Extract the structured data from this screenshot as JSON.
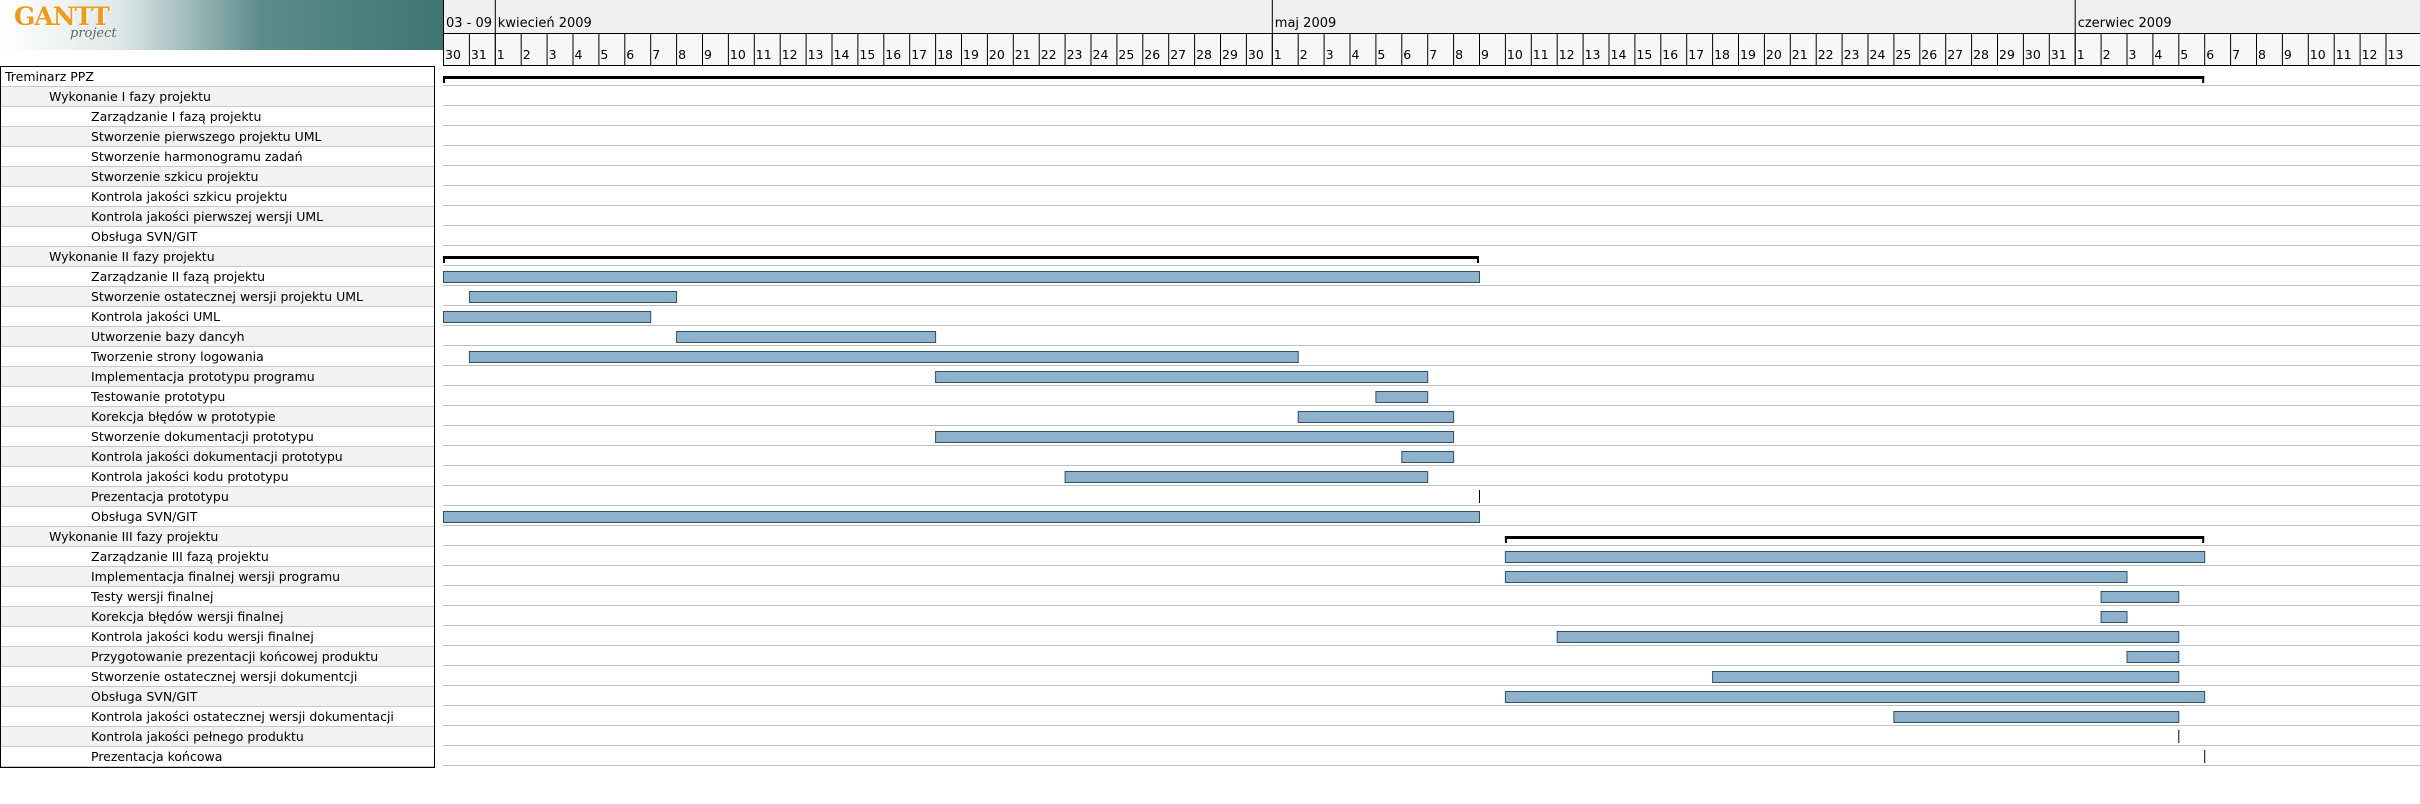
{
  "logo": {
    "mark": "GANTT",
    "sub": "project"
  },
  "timeline": {
    "months": [
      {
        "label": "03 - 09",
        "startDayIndex": 0
      },
      {
        "label": "kwiecień 2009",
        "startDayIndex": 2
      },
      {
        "label": "maj 2009",
        "startDayIndex": 32
      },
      {
        "label": "czerwiec 2009",
        "startDayIndex": 63
      }
    ],
    "days": [
      "30",
      "31",
      "1",
      "2",
      "3",
      "4",
      "5",
      "6",
      "7",
      "8",
      "9",
      "10",
      "11",
      "12",
      "13",
      "14",
      "15",
      "16",
      "17",
      "18",
      "19",
      "20",
      "21",
      "22",
      "23",
      "24",
      "25",
      "26",
      "27",
      "28",
      "29",
      "30",
      "1",
      "2",
      "3",
      "4",
      "5",
      "6",
      "7",
      "8",
      "9",
      "10",
      "11",
      "12",
      "13",
      "14",
      "15",
      "16",
      "17",
      "18",
      "19",
      "20",
      "21",
      "22",
      "23",
      "24",
      "25",
      "26",
      "27",
      "28",
      "29",
      "30",
      "31",
      "1",
      "2",
      "3",
      "4",
      "5",
      "6",
      "7",
      "8",
      "9",
      "10",
      "11",
      "12",
      "13"
    ]
  },
  "colors": {
    "bar_fill": "#8eb2cc",
    "bar_stroke": "#2f4f6a",
    "summary": "#000000",
    "grid": "#bfbfbf"
  },
  "tasks": [
    {
      "name": "Treminarz PPZ",
      "level": 0,
      "type": "summary",
      "start": 0,
      "end": 68
    },
    {
      "name": "Wykonanie I fazy projektu",
      "level": 1,
      "type": "none"
    },
    {
      "name": "Zarządzanie I fazą projektu",
      "level": 2,
      "type": "none"
    },
    {
      "name": "Stworzenie pierwszego projektu UML",
      "level": 2,
      "type": "none"
    },
    {
      "name": "Stworzenie harmonogramu zadań",
      "level": 2,
      "type": "none"
    },
    {
      "name": "Stworzenie szkicu projektu",
      "level": 2,
      "type": "none"
    },
    {
      "name": "Kontrola jakości szkicu projektu",
      "level": 2,
      "type": "none"
    },
    {
      "name": "Kontrola jakości pierwszej wersji UML",
      "level": 2,
      "type": "none"
    },
    {
      "name": "Obsługa SVN/GIT",
      "level": 2,
      "type": "none"
    },
    {
      "name": "Wykonanie II fazy projektu",
      "level": 1,
      "type": "summary",
      "start": 0,
      "end": 40
    },
    {
      "name": "Zarządzanie II fazą projektu",
      "level": 2,
      "type": "bar",
      "start": 0,
      "end": 40
    },
    {
      "name": "Stworzenie ostatecznej wersji projektu UML",
      "level": 2,
      "type": "bar",
      "start": 1,
      "end": 9
    },
    {
      "name": "Kontrola jakości UML",
      "level": 2,
      "type": "bar",
      "start": 0,
      "end": 8
    },
    {
      "name": "Utworzenie bazy dancyh",
      "level": 2,
      "type": "bar",
      "start": 9,
      "end": 19
    },
    {
      "name": "Tworzenie strony logowania",
      "level": 2,
      "type": "bar",
      "start": 1,
      "end": 33
    },
    {
      "name": "Implementacja prototypu programu",
      "level": 2,
      "type": "bar",
      "start": 19,
      "end": 38
    },
    {
      "name": "Testowanie prototypu",
      "level": 2,
      "type": "bar",
      "start": 36,
      "end": 38
    },
    {
      "name": "Korekcja błędów w prototypie",
      "level": 2,
      "type": "bar",
      "start": 33,
      "end": 39
    },
    {
      "name": "Stworzenie dokumentacji prototypu",
      "level": 2,
      "type": "bar",
      "start": 19,
      "end": 39
    },
    {
      "name": "Kontrola jakości dokumentacji prototypu",
      "level": 2,
      "type": "bar",
      "start": 37,
      "end": 39
    },
    {
      "name": "Kontrola jakości kodu prototypu",
      "level": 2,
      "type": "bar",
      "start": 24,
      "end": 38
    },
    {
      "name": "Prezentacja prototypu",
      "level": 2,
      "type": "milestone",
      "start": 40
    },
    {
      "name": "Obsługa SVN/GIT",
      "level": 2,
      "type": "bar",
      "start": 0,
      "end": 40
    },
    {
      "name": "Wykonanie III fazy projektu",
      "level": 1,
      "type": "summary",
      "start": 41,
      "end": 68
    },
    {
      "name": "Zarządzanie III fazą projektu",
      "level": 2,
      "type": "bar",
      "start": 41,
      "end": 68
    },
    {
      "name": "Implementacja finalnej wersji programu",
      "level": 2,
      "type": "bar",
      "start": 41,
      "end": 65
    },
    {
      "name": " Testy wersji finalnej",
      "level": 2,
      "type": "bar",
      "start": 64,
      "end": 67
    },
    {
      "name": "Korekcja błędów wersji finalnej",
      "level": 2,
      "type": "bar",
      "start": 64,
      "end": 65
    },
    {
      "name": "Kontrola jakości kodu wersji finalnej",
      "level": 2,
      "type": "bar",
      "start": 43,
      "end": 67
    },
    {
      "name": "Przygotowanie prezentacji końcowej produktu",
      "level": 2,
      "type": "bar",
      "start": 65,
      "end": 67
    },
    {
      "name": "Stworzenie ostatecznej wersji dokumentcji",
      "level": 2,
      "type": "bar",
      "start": 49,
      "end": 67
    },
    {
      "name": "Obsługa SVN/GIT",
      "level": 2,
      "type": "bar",
      "start": 41,
      "end": 68
    },
    {
      "name": "Kontrola jakości ostatecznej wersji dokumentacji",
      "level": 2,
      "type": "bar",
      "start": 56,
      "end": 67
    },
    {
      "name": "Kontrola jakości pełnego produktu",
      "level": 2,
      "type": "milestone",
      "start": 67
    },
    {
      "name": "Prezentacja końcowa",
      "level": 2,
      "type": "milestone",
      "start": 68
    }
  ]
}
